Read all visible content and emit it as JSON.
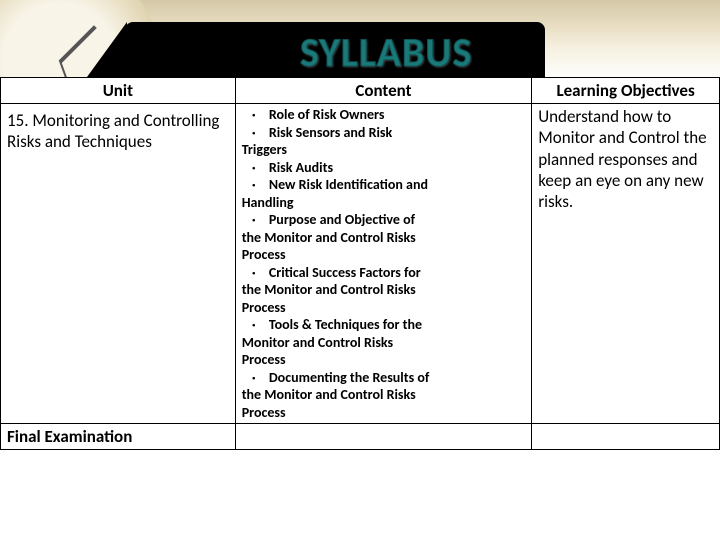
{
  "title": "SYLLABUS",
  "headers": {
    "unit": "Unit",
    "content": "Content",
    "objectives": "Learning Objectives"
  },
  "row": {
    "unit": "15.  Monitoring and Controlling Risks and Techniques",
    "content_items": [
      {
        "bullet": true,
        "text": "Role of Risk Owners"
      },
      {
        "bullet": true,
        "text": "Risk Sensors and Risk"
      },
      {
        "bullet": false,
        "text": "Triggers"
      },
      {
        "bullet": true,
        "text": "Risk Audits"
      },
      {
        "bullet": true,
        "text": "New Risk Identification and"
      },
      {
        "bullet": false,
        "text": "Handling"
      },
      {
        "bullet": true,
        "text": "Purpose and Objective of"
      },
      {
        "bullet": false,
        "text": "the Monitor and Control Risks"
      },
      {
        "bullet": false,
        "text": "Process"
      },
      {
        "bullet": true,
        "text": "Critical Success Factors for"
      },
      {
        "bullet": false,
        "text": "the Monitor and Control Risks"
      },
      {
        "bullet": false,
        "text": "Process"
      },
      {
        "bullet": true,
        "text": "Tools & Techniques for the"
      },
      {
        "bullet": false,
        "text": "Monitor and Control Risks"
      },
      {
        "bullet": false,
        "text": "Process"
      },
      {
        "bullet": true,
        "text": "Documenting the Results of"
      },
      {
        "bullet": false,
        "text": "the Monitor and Control Risks"
      },
      {
        "bullet": false,
        "text": "Process"
      }
    ],
    "objectives": "Understand how to Monitor and Control the planned responses and keep an eye on any new risks."
  },
  "final": "Final Examination",
  "colors": {
    "title_color": "#1a7a7a",
    "border_color": "#000000",
    "background": "#ffffff"
  }
}
